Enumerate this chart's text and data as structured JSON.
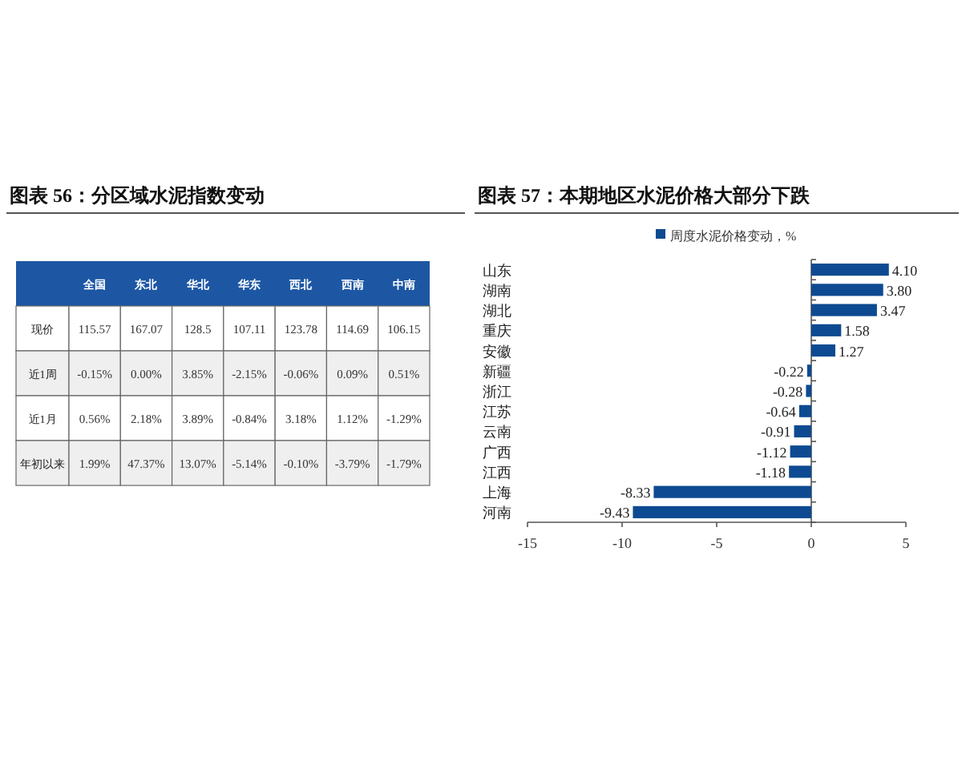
{
  "chart_data": [
    {
      "type": "heatmap",
      "title": "图表 56：分区域水泥指数变动",
      "categories": [
        "全国",
        "东北",
        "华北",
        "华东",
        "西北",
        "西南",
        "中南"
      ],
      "y_categories": [
        "现价",
        "近1周",
        "近1月",
        "年初以来"
      ],
      "cells": [
        [
          115.57,
          167.07,
          128.5,
          107.11,
          123.78,
          114.69,
          106.15
        ],
        [
          -0.15,
          0.0,
          3.85,
          -2.15,
          -0.06,
          0.09,
          0.51
        ],
        [
          0.56,
          2.18,
          3.89,
          -0.84,
          3.18,
          1.12,
          -1.29
        ],
        [
          1.99,
          47.37,
          13.07,
          -5.14,
          -0.1,
          -3.79,
          -1.79
        ]
      ],
      "cell_labels": [
        [
          "115.57",
          "167.07",
          "128.5",
          "107.11",
          "123.78",
          "114.69",
          "106.15"
        ],
        [
          "-0.15%",
          "0.00%",
          "3.85%",
          "-2.15%",
          "-0.06%",
          "0.09%",
          "0.51%"
        ],
        [
          "0.56%",
          "2.18%",
          "3.89%",
          "-0.84%",
          "3.18%",
          "1.12%",
          "-1.29%"
        ],
        [
          "1.99%",
          "47.37%",
          "13.07%",
          "-5.14%",
          "-0.10%",
          "-3.79%",
          "-1.79%"
        ]
      ]
    },
    {
      "type": "bar",
      "orientation": "horizontal",
      "title": "图表 57：本期地区水泥价格大部分下跌",
      "categories": [
        "山东",
        "湖南",
        "湖北",
        "重庆",
        "安徽",
        "新疆",
        "浙江",
        "江苏",
        "云南",
        "广西",
        "江西",
        "上海",
        "河南"
      ],
      "series": [
        {
          "name": "周度水泥价格变动，%",
          "color": "#0d4a91",
          "values": [
            4.1,
            3.8,
            3.47,
            1.58,
            1.27,
            -0.22,
            -0.28,
            -0.64,
            -0.91,
            -1.12,
            -1.18,
            -8.33,
            -9.43
          ],
          "value_labels": [
            "4.10",
            "3.80",
            "3.47",
            "1.58",
            "1.27",
            "-0.22",
            "-0.28",
            "-0.64",
            "-0.91",
            "-1.12",
            "-1.18",
            "-8.33",
            "-9.43"
          ]
        }
      ],
      "xlim": [
        -15,
        5
      ],
      "xticks": [
        -15,
        -10,
        -5,
        0,
        5
      ],
      "legend": "top"
    }
  ]
}
